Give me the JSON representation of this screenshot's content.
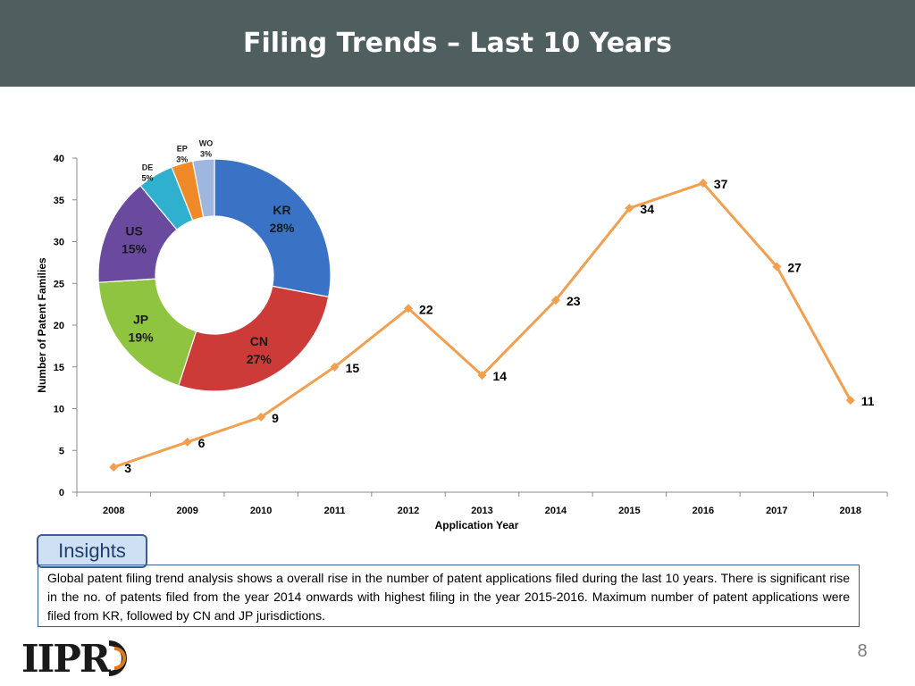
{
  "page": {
    "title": "Filing Trends – Last 10 Years",
    "page_number": "8",
    "logo_text": "IIPRD"
  },
  "insights": {
    "label": "Insights",
    "text": "Global patent filing trend analysis shows a overall rise in the number of patent applications filed during the last 10 years. There is significant rise in the no. of patents filed from the year 2014 onwards with highest filing in the year 2015-2016. Maximum number of patent applications were filed from KR, followed by CN and JP jurisdictions."
  },
  "colors": {
    "header": "#4f5f5f",
    "line": "#f0a050",
    "KR": "#3a72c6",
    "CN": "#cc3b38",
    "JP": "#8fc440",
    "US": "#6a4a9e",
    "DE": "#2fb0cf",
    "EP": "#f08a28",
    "WO": "#9fb7de"
  },
  "chart_data": [
    {
      "type": "line",
      "x": [
        "2008",
        "2009",
        "2010",
        "2011",
        "2012",
        "2013",
        "2014",
        "2015",
        "2016",
        "2017",
        "2018"
      ],
      "values": [
        3,
        6,
        9,
        15,
        22,
        14,
        23,
        34,
        37,
        27,
        11
      ],
      "data_labels": [
        "3",
        "6",
        "9",
        "15",
        "22",
        "14",
        "23",
        "34",
        "37",
        "27",
        "11"
      ],
      "xlabel": "Application Year",
      "ylabel": "Number of Patent Families",
      "ylim": [
        0,
        40
      ],
      "yticks": [
        "0",
        "5",
        "10",
        "15",
        "20",
        "25",
        "30",
        "35",
        "40"
      ],
      "grid": false,
      "legend": "none"
    },
    {
      "type": "pie",
      "donut": true,
      "slices": [
        {
          "name": "KR",
          "value": 28,
          "label": "28%"
        },
        {
          "name": "CN",
          "value": 27,
          "label": "27%"
        },
        {
          "name": "JP",
          "value": 19,
          "label": "19%"
        },
        {
          "name": "US",
          "value": 15,
          "label": "15%"
        },
        {
          "name": "DE",
          "value": 5,
          "label": "5%"
        },
        {
          "name": "EP",
          "value": 3,
          "label": "3%"
        },
        {
          "name": "WO",
          "value": 3,
          "label": "3%"
        }
      ]
    }
  ]
}
